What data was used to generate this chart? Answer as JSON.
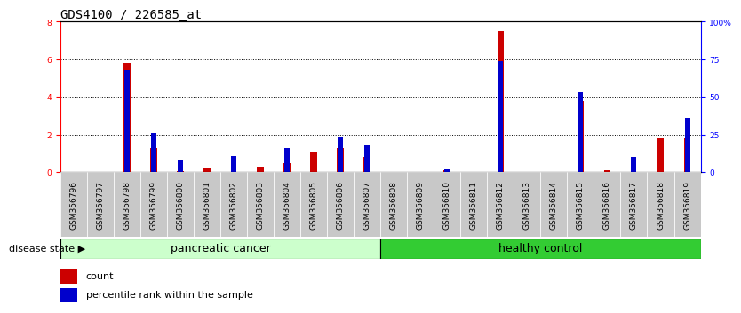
{
  "title": "GDS4100 / 226585_at",
  "samples": [
    "GSM356796",
    "GSM356797",
    "GSM356798",
    "GSM356799",
    "GSM356800",
    "GSM356801",
    "GSM356802",
    "GSM356803",
    "GSM356804",
    "GSM356805",
    "GSM356806",
    "GSM356807",
    "GSM356808",
    "GSM356809",
    "GSM356810",
    "GSM356811",
    "GSM356812",
    "GSM356813",
    "GSM356814",
    "GSM356815",
    "GSM356816",
    "GSM356817",
    "GSM356818",
    "GSM356819"
  ],
  "count": [
    0,
    0,
    5.8,
    1.3,
    0.05,
    0.2,
    0,
    0.3,
    0.5,
    1.1,
    1.3,
    0.8,
    0,
    0,
    0.1,
    0,
    7.5,
    0,
    0,
    3.8,
    0.1,
    0,
    1.8,
    1.8
  ],
  "percentile": [
    0,
    0,
    68,
    26,
    8,
    0,
    11,
    0,
    16,
    0,
    24,
    18,
    0,
    0,
    2,
    0,
    74,
    0,
    0,
    53,
    0,
    10,
    0,
    36
  ],
  "groups": [
    {
      "label": "pancreatic cancer",
      "start": 0,
      "end": 12,
      "color": "#CCFFCC"
    },
    {
      "label": "healthy control",
      "start": 12,
      "end": 24,
      "color": "#33CC33"
    }
  ],
  "ylim_left": [
    0,
    8
  ],
  "ylim_right": [
    0,
    100
  ],
  "yticks_left": [
    0,
    2,
    4,
    6,
    8
  ],
  "yticks_right": [
    0,
    25,
    50,
    75,
    100
  ],
  "ytick_labels_right": [
    "0",
    "25",
    "50",
    "75",
    "100%"
  ],
  "bar_color_count": "#CC0000",
  "bar_color_pct": "#0000CC",
  "bar_width": 0.25,
  "grid_yticks": [
    2,
    4,
    6
  ],
  "disease_state_label": "disease state",
  "legend_count": "count",
  "legend_pct": "percentile rank within the sample",
  "title_fontsize": 10,
  "tick_fontsize": 6.5,
  "group_label_fontsize": 9,
  "legend_fontsize": 8,
  "pct_bar_width": 0.2
}
